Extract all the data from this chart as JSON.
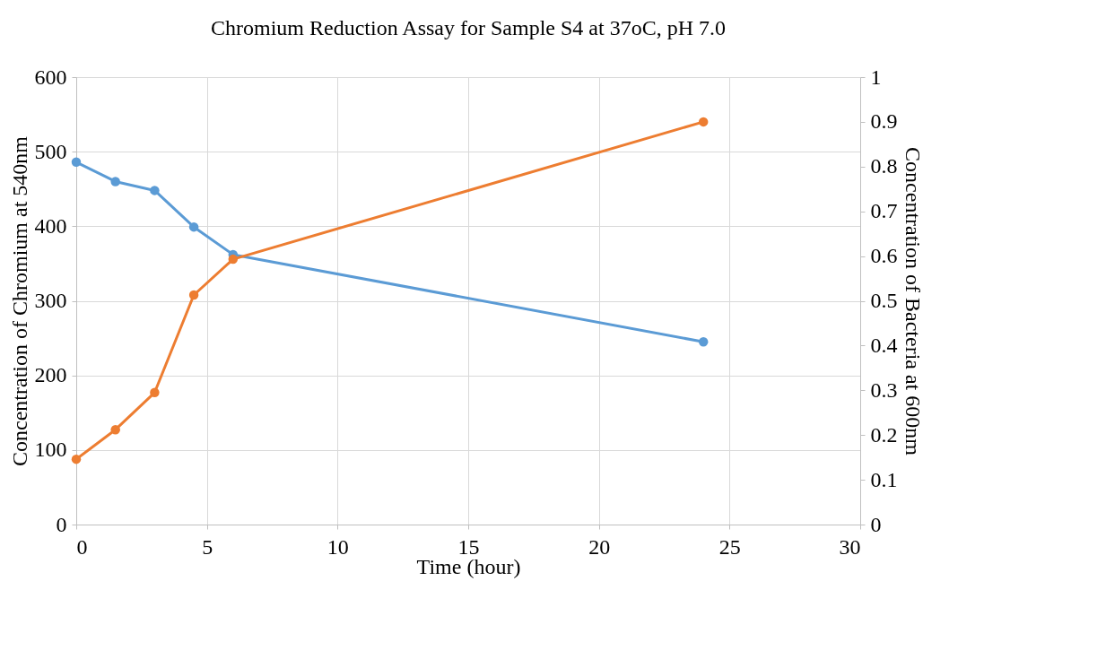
{
  "chart_data": {
    "type": "line",
    "title": "Chromium Reduction Assay for Sample S4 at 37oC, pH 7.0",
    "xlabel": "Time (hour)",
    "ylabel": "Concentration of Chromium at 540nm",
    "y2label": "Concentration of Bacteria at 600nm",
    "x": [
      0,
      1.5,
      3,
      4.5,
      6,
      24
    ],
    "series": [
      {
        "color": "#5b9bd5",
        "values": [
          486,
          460,
          448,
          399,
          362,
          245
        ]
      },
      {
        "color": "#ed7d31",
        "axis": "y2",
        "values": [
          0.146,
          0.212,
          0.295,
          0.513,
          0.593,
          0.9
        ]
      }
    ],
    "xlim": [
      0,
      30
    ],
    "xticks": [
      0,
      5,
      10,
      15,
      20,
      25,
      30
    ],
    "ylim": [
      0,
      600
    ],
    "yticks": [
      0,
      100,
      200,
      300,
      400,
      500,
      600
    ],
    "y2lim": [
      0,
      1
    ],
    "y2ticks": [
      0,
      0.1,
      0.2,
      0.3,
      0.4,
      0.5,
      0.6,
      0.7,
      0.8,
      0.9,
      1
    ],
    "grid": true,
    "marker": "circle",
    "line_style": "solid"
  }
}
